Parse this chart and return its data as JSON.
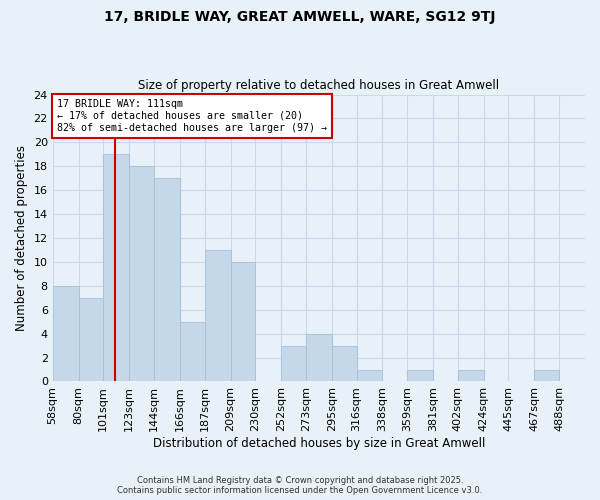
{
  "title": "17, BRIDLE WAY, GREAT AMWELL, WARE, SG12 9TJ",
  "subtitle": "Size of property relative to detached houses in Great Amwell",
  "xlabel": "Distribution of detached houses by size in Great Amwell",
  "ylabel": "Number of detached properties",
  "bin_labels": [
    "58sqm",
    "80sqm",
    "101sqm",
    "123sqm",
    "144sqm",
    "166sqm",
    "187sqm",
    "209sqm",
    "230sqm",
    "252sqm",
    "273sqm",
    "295sqm",
    "316sqm",
    "338sqm",
    "359sqm",
    "381sqm",
    "402sqm",
    "424sqm",
    "445sqm",
    "467sqm",
    "488sqm"
  ],
  "bin_edges": [
    58,
    80,
    101,
    123,
    144,
    166,
    187,
    209,
    230,
    252,
    273,
    295,
    316,
    338,
    359,
    381,
    402,
    424,
    445,
    467,
    488
  ],
  "counts": [
    8,
    7,
    19,
    18,
    17,
    5,
    11,
    10,
    0,
    3,
    4,
    3,
    1,
    0,
    1,
    0,
    1,
    0,
    0,
    1
  ],
  "bar_color": "#c5d8ea",
  "bar_edge_color": "#a0bcd4",
  "grid_color": "#c8d8f0",
  "property_line_x": 111,
  "annotation_text": "17 BRIDLE WAY: 111sqm\n← 17% of detached houses are smaller (20)\n82% of semi-detached houses are larger (97) →",
  "annotation_box_color": "#ffffff",
  "annotation_box_edge_color": "#cc0000",
  "line_color": "#cc0000",
  "ylim": [
    0,
    24
  ],
  "yticks": [
    0,
    2,
    4,
    6,
    8,
    10,
    12,
    14,
    16,
    18,
    20,
    22,
    24
  ],
  "footer_line1": "Contains HM Land Registry data © Crown copyright and database right 2025.",
  "footer_line2": "Contains public sector information licensed under the Open Government Licence v3.0.",
  "bg_color": "#e8f0f8",
  "plot_bg_color": "#e8f0f8"
}
